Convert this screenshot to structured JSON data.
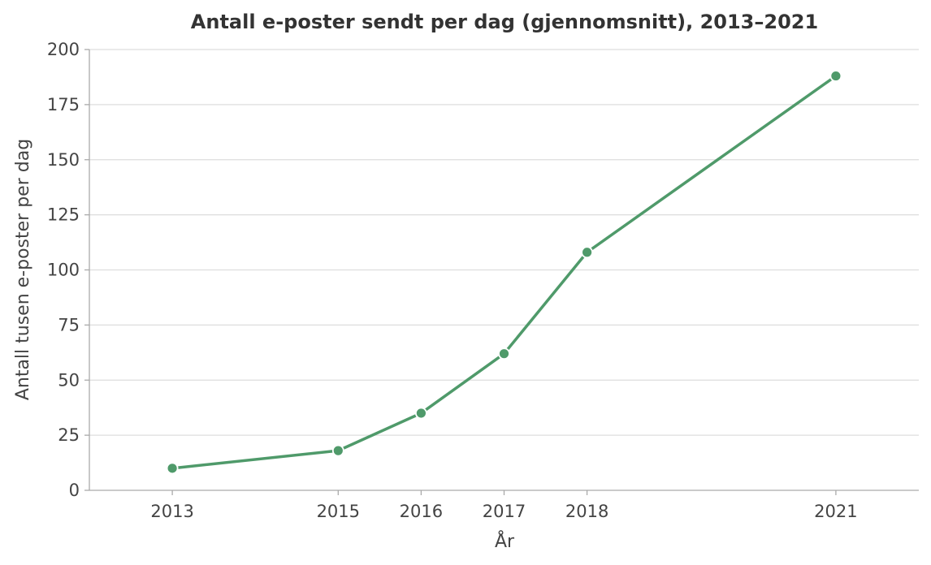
{
  "chart_data": {
    "type": "line",
    "title": "Antall e-poster sendt per dag (gjennomsnitt), 2013–2021",
    "xlabel": "År",
    "ylabel": "Antall tusen e-poster per dag",
    "x": [
      2013,
      2015,
      2016,
      2017,
      2018,
      2021
    ],
    "x_tick_labels": [
      "2013",
      "2015",
      "2016",
      "2017",
      "2018",
      "2021"
    ],
    "xlim": [
      2012,
      2022.0
    ],
    "ylim": [
      0,
      200
    ],
    "y_ticks": [
      0,
      25,
      50,
      75,
      100,
      125,
      150,
      175,
      200
    ],
    "y_tick_labels": [
      "0",
      "25",
      "50",
      "75",
      "100",
      "125",
      "150",
      "175",
      "200"
    ],
    "series": [
      {
        "values": [
          10,
          18,
          35,
          62,
          108,
          188
        ],
        "color": "#4f9a6a"
      }
    ],
    "grid": "horizontal",
    "legend": "none"
  }
}
